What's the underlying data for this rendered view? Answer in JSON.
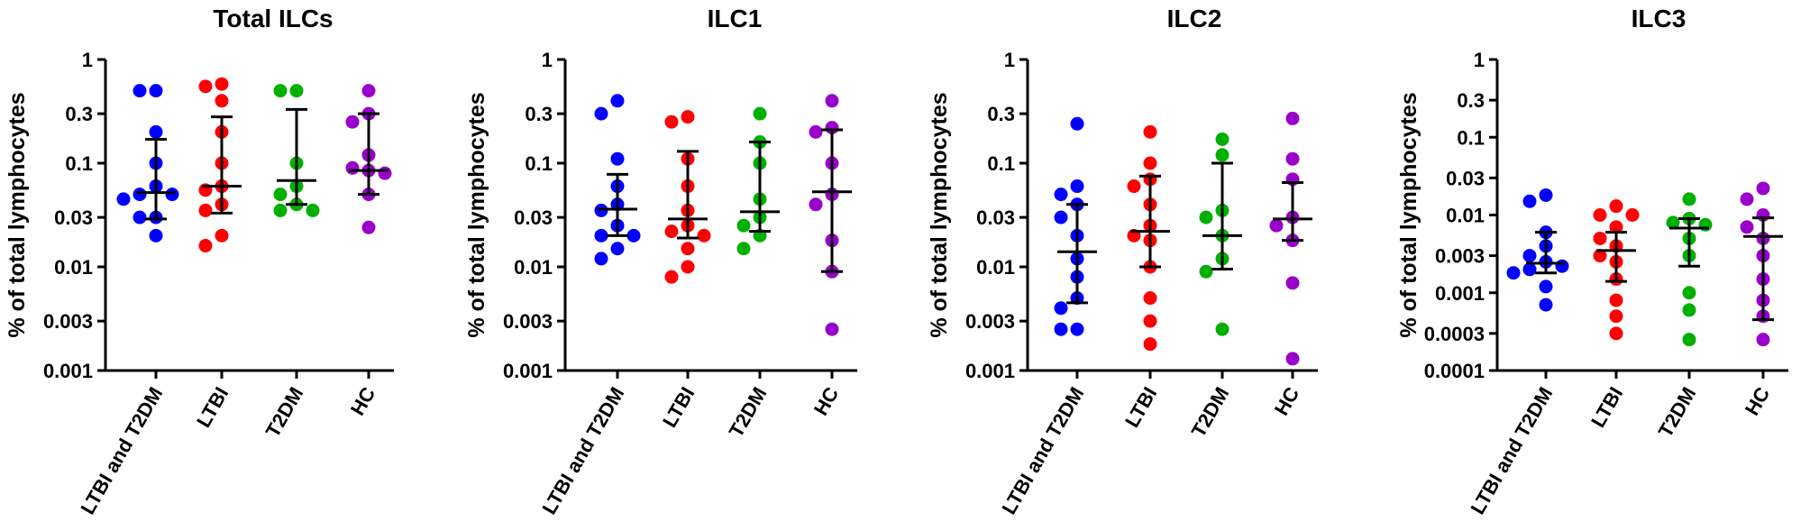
{
  "chart_data": [
    {
      "type": "scatter",
      "title": "Total ILCs",
      "ylabel": "% of total lymphocytes",
      "yscale": "log",
      "ylim": [
        0.001,
        1
      ],
      "yticks": [
        0.001,
        0.003,
        0.01,
        0.03,
        0.1,
        0.3,
        1
      ],
      "ytick_labels": [
        "0.001",
        "0.003",
        "0.01",
        "0.03",
        "0.1",
        "0.3",
        "1"
      ],
      "categories": [
        "LTBI and T2DM",
        "LTBI",
        "T2DM",
        "HC"
      ],
      "groups": [
        {
          "name": "LTBI and T2DM",
          "color": "#0000ff",
          "points": [
            0.5,
            0.5,
            0.2,
            0.1,
            0.06,
            0.05,
            0.05,
            0.045,
            0.03,
            0.03,
            0.02
          ],
          "median": 0.052,
          "whisker_low": 0.029,
          "whisker_high": 0.17
        },
        {
          "name": "LTBI",
          "color": "#ff0000",
          "points": [
            0.58,
            0.55,
            0.4,
            0.2,
            0.1,
            0.06,
            0.055,
            0.04,
            0.035,
            0.02,
            0.016
          ],
          "median": 0.06,
          "whisker_low": 0.033,
          "whisker_high": 0.28
        },
        {
          "name": "T2DM",
          "color": "#00b000",
          "points": [
            0.5,
            0.5,
            0.1,
            0.06,
            0.05,
            0.04,
            0.035,
            0.035
          ],
          "median": 0.068,
          "whisker_low": 0.04,
          "whisker_high": 0.33
        },
        {
          "name": "HC",
          "color": "#9900cc",
          "points": [
            0.5,
            0.3,
            0.25,
            0.12,
            0.09,
            0.085,
            0.08,
            0.05,
            0.024
          ],
          "median": 0.085,
          "whisker_low": 0.05,
          "whisker_high": 0.3
        }
      ]
    },
    {
      "type": "scatter",
      "title": "ILC1",
      "ylabel": "% of total lymphocytes",
      "yscale": "log",
      "ylim": [
        0.001,
        1
      ],
      "yticks": [
        0.001,
        0.003,
        0.01,
        0.03,
        0.1,
        0.3,
        1
      ],
      "ytick_labels": [
        "0.001",
        "0.003",
        "0.01",
        "0.03",
        "0.1",
        "0.3",
        "1"
      ],
      "categories": [
        "LTBI and T2DM",
        "LTBI",
        "T2DM",
        "HC"
      ],
      "groups": [
        {
          "name": "LTBI and T2DM",
          "color": "#0000ff",
          "points": [
            0.4,
            0.3,
            0.11,
            0.06,
            0.04,
            0.035,
            0.025,
            0.02,
            0.02,
            0.015,
            0.012
          ],
          "median": 0.036,
          "whisker_low": 0.02,
          "whisker_high": 0.078
        },
        {
          "name": "LTBI",
          "color": "#ff0000",
          "points": [
            0.28,
            0.25,
            0.11,
            0.06,
            0.035,
            0.025,
            0.022,
            0.02,
            0.015,
            0.01,
            0.008
          ],
          "median": 0.029,
          "whisker_low": 0.019,
          "whisker_high": 0.13
        },
        {
          "name": "T2DM",
          "color": "#00b000",
          "points": [
            0.3,
            0.16,
            0.1,
            0.045,
            0.03,
            0.025,
            0.02,
            0.015
          ],
          "median": 0.034,
          "whisker_low": 0.022,
          "whisker_high": 0.16
        },
        {
          "name": "HC",
          "color": "#9900cc",
          "points": [
            0.4,
            0.22,
            0.2,
            0.1,
            0.05,
            0.04,
            0.018,
            0.009,
            0.0025
          ],
          "median": 0.053,
          "whisker_low": 0.009,
          "whisker_high": 0.21
        }
      ]
    },
    {
      "type": "scatter",
      "title": "ILC2",
      "ylabel": "% of total lymphocytes",
      "yscale": "log",
      "ylim": [
        0.001,
        1
      ],
      "yticks": [
        0.001,
        0.003,
        0.01,
        0.03,
        0.1,
        0.3,
        1
      ],
      "ytick_labels": [
        "0.001",
        "0.003",
        "0.01",
        "0.03",
        "0.1",
        "0.3",
        "1"
      ],
      "categories": [
        "LTBI and T2DM",
        "LTBI",
        "T2DM",
        "HC"
      ],
      "groups": [
        {
          "name": "LTBI and T2DM",
          "color": "#0000ff",
          "points": [
            0.24,
            0.06,
            0.05,
            0.04,
            0.03,
            0.02,
            0.012,
            0.008,
            0.005,
            0.004,
            0.0025,
            0.0025
          ],
          "median": 0.014,
          "whisker_low": 0.0045,
          "whisker_high": 0.04
        },
        {
          "name": "LTBI",
          "color": "#ff0000",
          "points": [
            0.2,
            0.1,
            0.07,
            0.06,
            0.04,
            0.025,
            0.02,
            0.018,
            0.01,
            0.005,
            0.003,
            0.0018
          ],
          "median": 0.022,
          "whisker_low": 0.01,
          "whisker_high": 0.075
        },
        {
          "name": "T2DM",
          "color": "#00b000",
          "points": [
            0.17,
            0.12,
            0.035,
            0.03,
            0.02,
            0.012,
            0.009,
            0.0025
          ],
          "median": 0.02,
          "whisker_low": 0.0095,
          "whisker_high": 0.1
        },
        {
          "name": "HC",
          "color": "#9900cc",
          "points": [
            0.27,
            0.11,
            0.07,
            0.03,
            0.025,
            0.018,
            0.007,
            0.0013
          ],
          "median": 0.029,
          "whisker_low": 0.018,
          "whisker_high": 0.065
        }
      ]
    },
    {
      "type": "scatter",
      "title": "ILC3",
      "ylabel": "% of total lymphocytes",
      "yscale": "log",
      "ylim": [
        0.0001,
        1
      ],
      "yticks": [
        0.0001,
        0.0003,
        0.001,
        0.003,
        0.01,
        0.03,
        0.1,
        0.3,
        1
      ],
      "ytick_labels": [
        "0.0001",
        "0.0003",
        "0.001",
        "0.003",
        "0.01",
        "0.03",
        "0.1",
        "0.3",
        "1"
      ],
      "categories": [
        "LTBI and T2DM",
        "LTBI",
        "T2DM",
        "HC"
      ],
      "groups": [
        {
          "name": "LTBI and T2DM",
          "color": "#0000ff",
          "points": [
            0.018,
            0.015,
            0.006,
            0.004,
            0.003,
            0.0025,
            0.0022,
            0.002,
            0.0018,
            0.0012,
            0.0007
          ],
          "median": 0.0024,
          "whisker_low": 0.0018,
          "whisker_high": 0.006
        },
        {
          "name": "LTBI",
          "color": "#ff0000",
          "points": [
            0.013,
            0.01,
            0.01,
            0.007,
            0.005,
            0.004,
            0.003,
            0.0025,
            0.0015,
            0.0008,
            0.0005,
            0.0003
          ],
          "median": 0.0035,
          "whisker_low": 0.0014,
          "whisker_high": 0.006
        },
        {
          "name": "T2DM",
          "color": "#00b000",
          "points": [
            0.016,
            0.009,
            0.008,
            0.0075,
            0.005,
            0.003,
            0.001,
            0.0006,
            0.00025
          ],
          "median": 0.0068,
          "whisker_low": 0.0022,
          "whisker_high": 0.009
        },
        {
          "name": "HC",
          "color": "#9900cc",
          "points": [
            0.022,
            0.016,
            0.01,
            0.007,
            0.005,
            0.003,
            0.0015,
            0.0008,
            0.0005,
            0.00025
          ],
          "median": 0.0053,
          "whisker_low": 0.00045,
          "whisker_high": 0.0092
        }
      ]
    }
  ]
}
